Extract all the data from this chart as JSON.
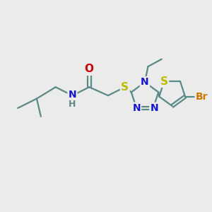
{
  "bg_color": "#ebebeb",
  "bond_color": "#5a8a88",
  "bond_width": 1.6,
  "atoms": {
    "O": {
      "color": "#cc0000"
    },
    "N": {
      "color": "#1515cc"
    },
    "S": {
      "color": "#bbbb00"
    },
    "Br": {
      "color": "#cc7700"
    },
    "H": {
      "color": "#5a8a88"
    }
  },
  "figsize": [
    3.0,
    3.0
  ],
  "dpi": 100
}
